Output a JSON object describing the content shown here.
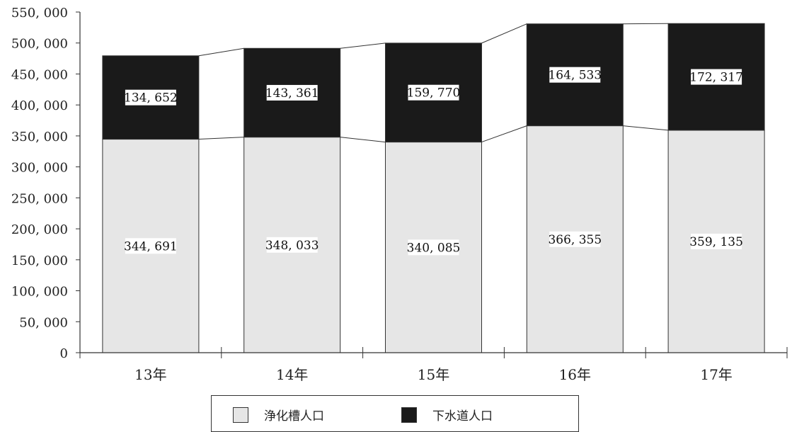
{
  "chart_data": {
    "type": "bar",
    "stacked": true,
    "categories": [
      "13年",
      "14年",
      "15年",
      "16年",
      "17年"
    ],
    "series": [
      {
        "name": "浄化槽人口",
        "color": "#e6e6e6",
        "values": [
          344691,
          348033,
          340085,
          366355,
          359135
        ],
        "labels": [
          "344, 691",
          "348, 033",
          "340, 085",
          "366, 355",
          "359, 135"
        ]
      },
      {
        "name": "下水道人口",
        "color": "#1a1a1a",
        "values": [
          134652,
          143361,
          159770,
          164533,
          172317
        ],
        "labels": [
          "134, 652",
          "143, 361",
          "159, 770",
          "164, 533",
          "172, 317"
        ]
      }
    ],
    "ylim": [
      0,
      550000
    ],
    "yticks": [
      0,
      50000,
      100000,
      150000,
      200000,
      250000,
      300000,
      350000,
      400000,
      450000,
      500000,
      550000
    ],
    "ytick_labels": [
      "0",
      "50, 000",
      "100, 000",
      "150, 000",
      "200, 000",
      "250, 000",
      "300, 000",
      "350, 000",
      "400, 000",
      "450, 000",
      "500, 000",
      "550, 000"
    ],
    "legend_position": "bottom",
    "grid": false,
    "series_connector_lines": true
  },
  "legend": {
    "items": [
      {
        "label": "浄化槽人口",
        "color": "#e6e6e6"
      },
      {
        "label": "下水道人口",
        "color": "#1a1a1a"
      }
    ]
  }
}
